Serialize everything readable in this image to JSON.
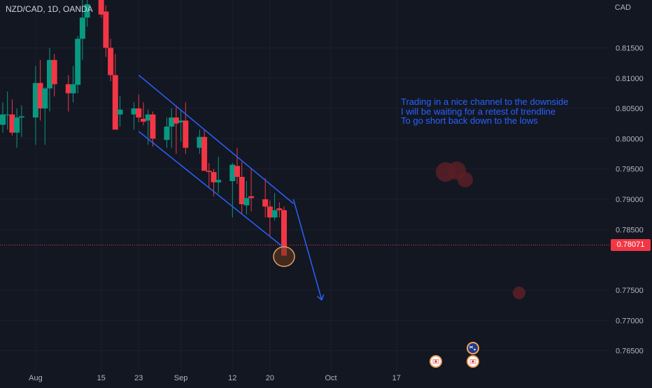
{
  "header": {
    "symbol_title": "NZD/CAD, 1D, OANDA",
    "currency": "CAD"
  },
  "annotation": {
    "lines": [
      "Trading in a nice channel to the downside",
      "I will be waiting for a retest of trendline",
      "To go short back down to the lows"
    ]
  },
  "last_price_label": "0.78071",
  "colors": {
    "background": "#131722",
    "bull": "#089981",
    "bear": "#f23645",
    "drawing": "#2962ff",
    "axis_text": "#b2b5be",
    "circle_fill": "#5a1f26",
    "circle_stroke": "#e0a060"
  },
  "icons": [
    "flag-canada-icon",
    "flag-canada-icon",
    "flag-australia-icon"
  ],
  "chart_data": {
    "type": "candlestick",
    "xlabel": "",
    "ylabel": "",
    "ylim": [
      0.7615,
      0.8229
    ],
    "y_ticks": [
      "0.81500",
      "0.81000",
      "0.80500",
      "0.80000",
      "0.79500",
      "0.79000",
      "0.78500",
      "0.77500",
      "0.77000",
      "0.76500"
    ],
    "y_tick_values": [
      0.815,
      0.81,
      0.805,
      0.8,
      0.795,
      0.79,
      0.785,
      0.775,
      0.77,
      0.765
    ],
    "x_ticks": [
      "Aug",
      "15",
      "23",
      "Sep",
      "12",
      "20",
      "Oct",
      "17"
    ],
    "x_tick_dates": [
      "2022-08-01",
      "2022-08-15",
      "2022-08-23",
      "2022-09-01",
      "2022-09-12",
      "2022-09-20",
      "2022-10-03",
      "2022-10-17"
    ],
    "last_price": 0.78071,
    "series": [
      {
        "dates": [
          "2022-07-25",
          "2022-07-26",
          "2022-07-27",
          "2022-07-28",
          "2022-07-29",
          "2022-08-01",
          "2022-08-02",
          "2022-08-03",
          "2022-08-04",
          "2022-08-05",
          "2022-08-08",
          "2022-08-09",
          "2022-08-10",
          "2022-08-11",
          "2022-08-12",
          "2022-08-15",
          "2022-08-16",
          "2022-08-17",
          "2022-08-18",
          "2022-08-19",
          "2022-08-22",
          "2022-08-23",
          "2022-08-24",
          "2022-08-25",
          "2022-08-26",
          "2022-08-29",
          "2022-08-30",
          "2022-08-31",
          "2022-09-01",
          "2022-09-02",
          "2022-09-05",
          "2022-09-06",
          "2022-09-07",
          "2022-09-08",
          "2022-09-09",
          "2022-09-12",
          "2022-09-13",
          "2022-09-14",
          "2022-09-15",
          "2022-09-16",
          "2022-09-19",
          "2022-09-20",
          "2022-09-21",
          "2022-09-22",
          "2022-09-23"
        ],
        "open": [
          0.8023,
          0.8039,
          0.804,
          0.801,
          0.8035,
          0.8035,
          0.8092,
          0.805,
          0.8083,
          0.813,
          0.809,
          0.8075,
          0.8089,
          0.8165,
          0.82,
          0.8245,
          0.821,
          0.815,
          0.8105,
          0.804,
          0.804,
          0.805,
          0.8033,
          0.803,
          0.804,
          0.7998,
          0.802,
          0.8035,
          0.8027,
          0.803,
          0.7985,
          0.8003,
          0.7947,
          0.7945,
          0.7928,
          0.793,
          0.7955,
          0.7937,
          0.789,
          0.7905,
          0.79,
          0.7888,
          0.787,
          0.7885,
          0.7882
        ],
        "high": [
          0.806,
          0.8078,
          0.8065,
          0.805,
          0.8055,
          0.812,
          0.813,
          0.8085,
          0.815,
          0.814,
          0.8105,
          0.812,
          0.817,
          0.823,
          0.825,
          0.8255,
          0.822,
          0.8165,
          0.814,
          0.807,
          0.806,
          0.8073,
          0.806,
          0.8048,
          0.8045,
          0.8035,
          0.805,
          0.8055,
          0.8047,
          0.806,
          0.8015,
          0.8015,
          0.796,
          0.795,
          0.797,
          0.796,
          0.7985,
          0.7962,
          0.793,
          0.795,
          0.7935,
          0.7898,
          0.791,
          0.7895,
          0.7888
        ],
        "low": [
          0.801,
          0.8015,
          0.8005,
          0.7985,
          0.8003,
          0.799,
          0.803,
          0.799,
          0.8045,
          0.807,
          0.8045,
          0.806,
          0.8075,
          0.813,
          0.8185,
          0.82,
          0.8135,
          0.8095,
          0.8018,
          0.802,
          0.8015,
          0.8027,
          0.8022,
          0.799,
          0.7987,
          0.7985,
          0.7985,
          0.7975,
          0.7995,
          0.7975,
          0.7975,
          0.795,
          0.792,
          0.7905,
          0.791,
          0.787,
          0.7925,
          0.7875,
          0.7875,
          0.788,
          0.787,
          0.784,
          0.7865,
          0.787,
          0.781
        ],
        "close": [
          0.804,
          0.804,
          0.801,
          0.8035,
          0.8037,
          0.8092,
          0.805,
          0.8083,
          0.813,
          0.809,
          0.8075,
          0.809,
          0.8165,
          0.82,
          0.8222,
          0.8205,
          0.815,
          0.8105,
          0.8015,
          0.8048,
          0.805,
          0.8035,
          0.8028,
          0.804,
          0.8,
          0.802,
          0.8035,
          0.8025,
          0.803,
          0.7985,
          0.8003,
          0.7947,
          0.7945,
          0.7928,
          0.7932,
          0.7957,
          0.7937,
          0.7892,
          0.7902,
          0.7902,
          0.7888,
          0.787,
          0.7882,
          0.7882,
          0.7807
        ]
      }
    ],
    "drawings": [
      {
        "type": "trendline",
        "from": {
          "date": "2022-08-23",
          "price": 0.8105
        },
        "to": {
          "date": "2022-09-25",
          "price": 0.7893
        }
      },
      {
        "type": "trendline",
        "from": {
          "date": "2022-08-23",
          "price": 0.8012
        },
        "to": {
          "date": "2022-09-23",
          "price": 0.782
        }
      },
      {
        "type": "arrow",
        "from": {
          "date": "2022-09-25",
          "price": 0.79
        },
        "to": {
          "date": "2022-10-01",
          "price": 0.7735
        }
      }
    ]
  }
}
